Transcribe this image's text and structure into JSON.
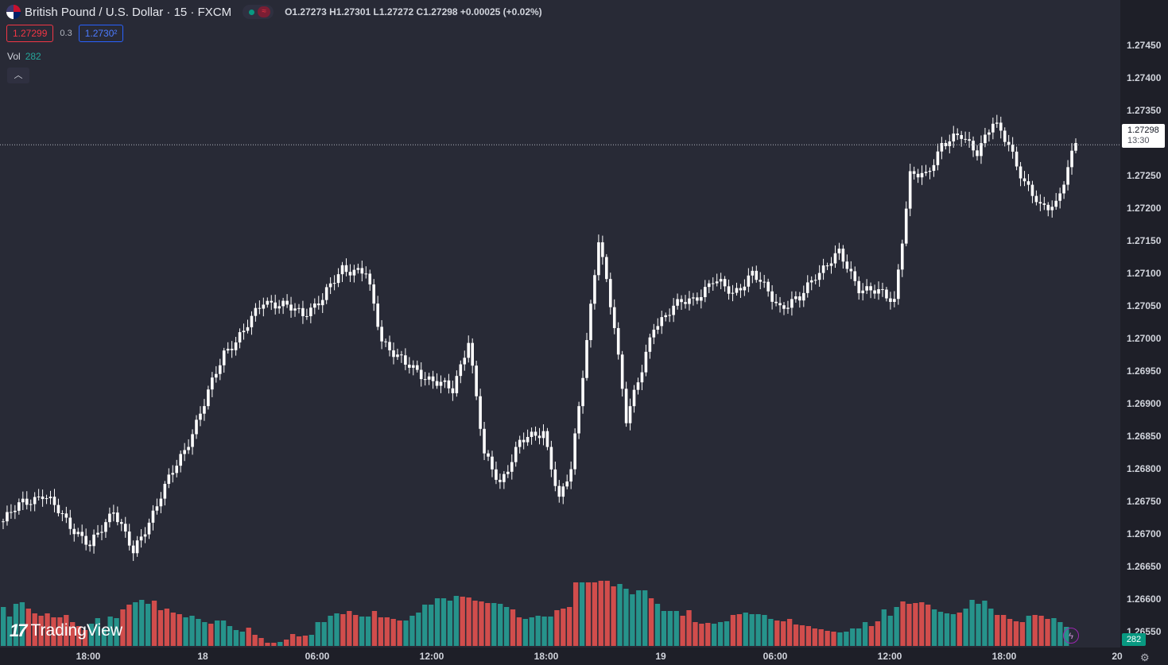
{
  "header": {
    "symbol_title": "British Pound / U.S. Dollar · 15 · FXCM",
    "status_icon": "market-open-dot",
    "ohlc": "O1.27273 H1.27301 L1.27272 C1.27298 +0.00025 (+0.02%)"
  },
  "quote": {
    "bid": "1.27299",
    "spread": "0.3",
    "ask": "1.2730²"
  },
  "volume_legend": {
    "label": "Vol",
    "value": "282"
  },
  "logo_text": "TradingView",
  "last_price": {
    "price": "1.27298",
    "countdown": "13:30"
  },
  "volume_label": "282",
  "colors": {
    "up_candle": "#ffffff",
    "down_candle": "#ffffff",
    "vol_up": "#26a69a",
    "vol_down": "#ef5350",
    "background": "#282a36"
  },
  "price_scale": [
    "1.27450",
    "1.27400",
    "1.27350",
    "1.27300",
    "1.27250",
    "1.27200",
    "1.27150",
    "1.27100",
    "1.27050",
    "1.27000",
    "1.26950",
    "1.26900",
    "1.26850",
    "1.26800",
    "1.26750",
    "1.26700",
    "1.26650",
    "1.26600",
    "1.26550"
  ],
  "time_scale": [
    "18:00",
    "18",
    "06:00",
    "12:00",
    "18:00",
    "19",
    "06:00",
    "12:00",
    "18:00",
    "20"
  ],
  "chart_data": {
    "type": "candlestick",
    "interval": "15",
    "y_range": [
      1.26525,
      1.27475
    ],
    "last_price": 1.27298,
    "volume_series_values": [
      49,
      37,
      53,
      55,
      47,
      41,
      38,
      41,
      36,
      36,
      39,
      30,
      25,
      20,
      28,
      35,
      22,
      37,
      35,
      46,
      52,
      55,
      58,
      53,
      57,
      45,
      47,
      42,
      40,
      36,
      38,
      34,
      30,
      28,
      32,
      32,
      25,
      20,
      18,
      23,
      14,
      10,
      4,
      4,
      5,
      8,
      15,
      12,
      13,
      14,
      30,
      30,
      38,
      41,
      40,
      44,
      39,
      37,
      37,
      44,
      36,
      36,
      34,
      32,
      32,
      38,
      42,
      52,
      52,
      60,
      60,
      57,
      63,
      62,
      61,
      57,
      56,
      54,
      54,
      53,
      49,
      46,
      36,
      34,
      36,
      38,
      37,
      37,
      45,
      47,
      49,
      80,
      80,
      80,
      80,
      82,
      82,
      75,
      78,
      72,
      65,
      70,
      70,
      60,
      53,
      44,
      44,
      44,
      38,
      45,
      30,
      28,
      29,
      28,
      30,
      31,
      39,
      40,
      42,
      40,
      40,
      39,
      34,
      32,
      31,
      34,
      27,
      26,
      25,
      22,
      21,
      19,
      18,
      17,
      18,
      22,
      22,
      30,
      25,
      31,
      46,
      38,
      49,
      56,
      53,
      54,
      55,
      52,
      46,
      43,
      41,
      40,
      42,
      47,
      58,
      53,
      57,
      47,
      39,
      39,
      34,
      31,
      30,
      38,
      39,
      38,
      34,
      35,
      30,
      24
    ]
  }
}
